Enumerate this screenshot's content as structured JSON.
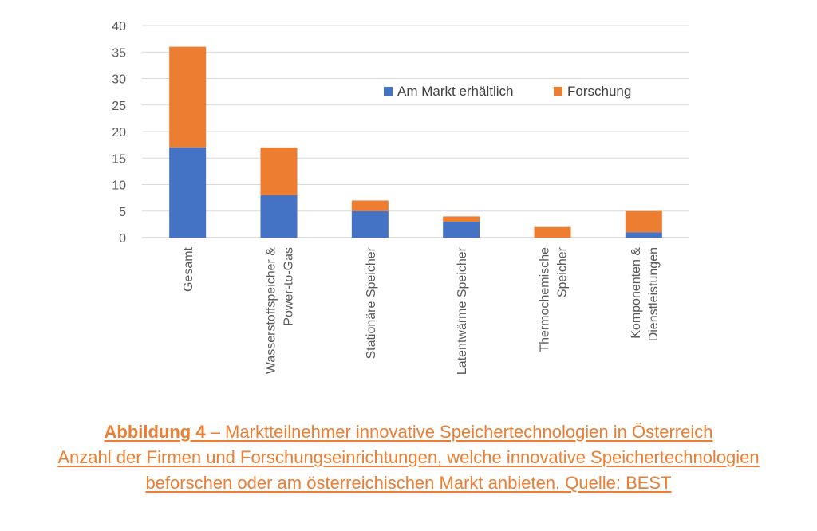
{
  "chart_data": {
    "type": "bar",
    "stacked": true,
    "categories": [
      [
        "Gesamt"
      ],
      [
        "Wasserstoffspeicher &",
        "Power-to-Gas"
      ],
      [
        "Stationäre Speicher"
      ],
      [
        "Latentwärme Speicher"
      ],
      [
        "Thermochemische",
        "Speicher"
      ],
      [
        "Komponenten &",
        "Dienstleistungen"
      ]
    ],
    "series": [
      {
        "name": "Am Markt erhältlich",
        "color": "#4472c4",
        "values": [
          17,
          8,
          5,
          3,
          0,
          1
        ]
      },
      {
        "name": "Forschung",
        "color": "#ed7d31",
        "values": [
          19,
          9,
          2,
          1,
          2,
          4
        ]
      }
    ],
    "ylim": [
      0,
      40
    ],
    "yticks": [
      0,
      5,
      10,
      15,
      20,
      25,
      30,
      35,
      40
    ],
    "grid": true,
    "legend_position": "top-right"
  },
  "caption": {
    "line1_bold": "Abbildung 4",
    "line1_rest": " – Marktteilnehmer innovative Speichertechnologien in Österreich",
    "line2": "Anzahl der Firmen und Forschungseinrichtungen, welche innovative Speichertechnologien",
    "line3": "beforschen oder am österreichischen Markt anbieten. Quelle: BEST"
  }
}
